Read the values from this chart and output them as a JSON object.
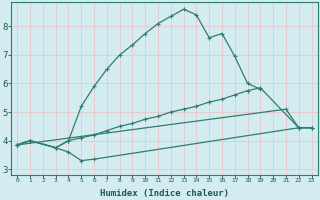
{
  "xlabel": "Humidex (Indice chaleur)",
  "bg_color": "#d4ecf0",
  "grid_color": "#e8c8c8",
  "line_color": "#2e7d6e",
  "xlim": [
    -0.5,
    23.5
  ],
  "ylim": [
    2.8,
    8.85
  ],
  "xticks": [
    0,
    1,
    2,
    3,
    4,
    5,
    6,
    7,
    8,
    9,
    10,
    11,
    12,
    13,
    14,
    15,
    16,
    17,
    18,
    19,
    20,
    21,
    22,
    23
  ],
  "yticks": [
    3,
    4,
    5,
    6,
    7,
    8
  ],
  "series": [
    {
      "x": [
        0,
        1,
        3,
        4,
        5,
        6,
        22,
        23
      ],
      "y": [
        3.85,
        4.0,
        3.75,
        3.6,
        3.3,
        3.35,
        4.45,
        4.45
      ]
    },
    {
      "x": [
        0,
        1,
        3,
        4,
        5,
        6,
        7,
        8,
        9,
        10,
        11,
        12,
        13,
        14,
        15,
        16,
        17,
        18,
        19,
        22,
        23
      ],
      "y": [
        3.85,
        4.0,
        3.75,
        4.0,
        4.1,
        4.2,
        4.35,
        4.5,
        4.6,
        4.75,
        4.85,
        5.0,
        5.1,
        5.2,
        5.35,
        5.45,
        5.6,
        5.75,
        5.85,
        4.45,
        4.45
      ]
    },
    {
      "x": [
        0,
        1,
        3,
        4,
        5,
        6,
        7,
        8,
        9,
        10,
        11,
        12,
        13,
        14,
        15,
        16,
        17,
        18,
        19
      ],
      "y": [
        3.85,
        4.0,
        3.75,
        4.0,
        5.2,
        5.9,
        6.5,
        7.0,
        7.35,
        7.75,
        8.1,
        8.35,
        8.6,
        8.4,
        7.6,
        7.75,
        6.95,
        6.0,
        5.8
      ]
    },
    {
      "x": [
        0,
        21,
        22,
        23
      ],
      "y": [
        3.85,
        5.1,
        4.45,
        4.45
      ]
    }
  ]
}
